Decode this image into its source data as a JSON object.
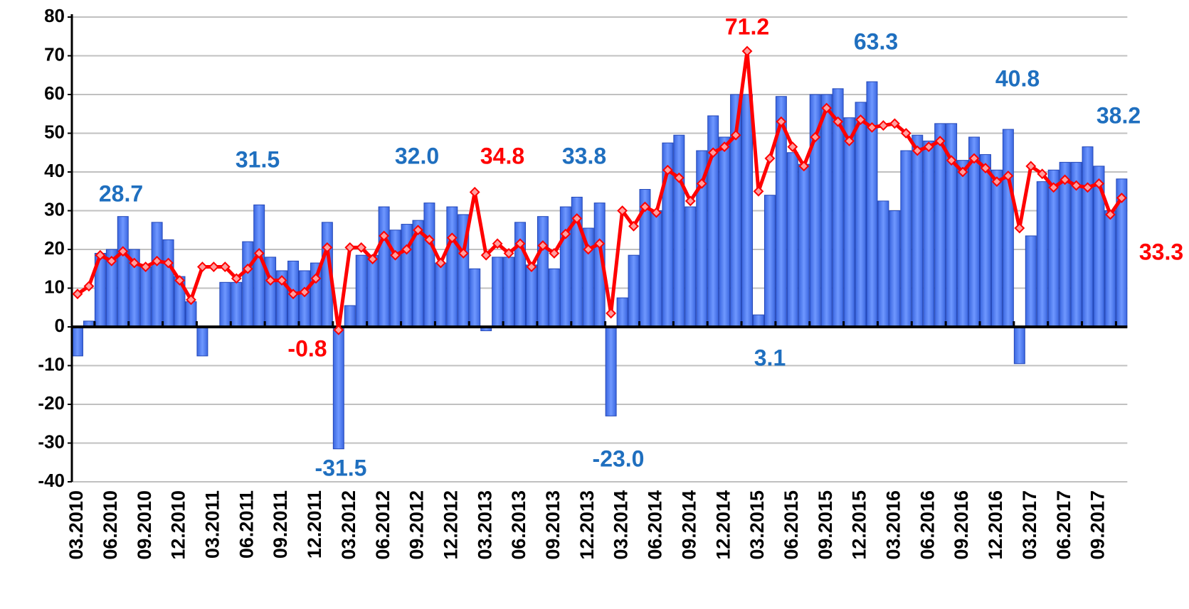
{
  "chart_data": {
    "type": "bar",
    "categories": [
      "03.2010",
      null,
      null,
      "06.2010",
      null,
      null,
      "09.2010",
      null,
      null,
      "12.2010",
      null,
      null,
      "03.2011",
      null,
      null,
      "06.2011",
      null,
      null,
      "09.2011",
      null,
      null,
      "12.2011",
      null,
      null,
      "03.2012",
      null,
      null,
      "06.2012",
      null,
      null,
      "09.2012",
      null,
      null,
      "12.2012",
      null,
      null,
      "03.2013",
      null,
      null,
      "06.2013",
      null,
      null,
      "09.2013",
      null,
      null,
      "12.2013",
      null,
      null,
      "03.2014",
      null,
      null,
      "06.2014",
      null,
      null,
      "09.2014",
      null,
      null,
      "12.2014",
      null,
      null,
      "03.2015",
      null,
      null,
      "06.2015",
      null,
      null,
      "09.2015",
      null,
      null,
      "12.2015",
      null,
      null,
      "03.2016",
      null,
      null,
      "06.2016",
      null,
      null,
      "09.2016",
      null,
      null,
      "12.2016",
      null,
      null,
      "03.2017",
      null,
      null,
      "06.2017",
      null,
      null,
      "09.2017",
      null,
      null
    ],
    "series": [
      {
        "type": "bar",
        "color": "#4f7ff0",
        "values": [
          -7.5,
          1.5,
          19,
          20,
          28.5,
          20,
          15.5,
          27,
          22.5,
          13,
          6.5,
          -7.5,
          0,
          11.5,
          11.5,
          22,
          31.5,
          18,
          14.5,
          17,
          14.5,
          16.5,
          27,
          -31.5,
          5.5,
          18.5,
          18.5,
          31,
          25,
          26.5,
          27.5,
          32,
          16.5,
          31,
          29,
          15,
          -1,
          18,
          18,
          27,
          16,
          28.5,
          15,
          31,
          33.5,
          25.5,
          32,
          -23,
          7.5,
          18.5,
          35.5,
          30,
          47.5,
          49.5,
          31,
          45.5,
          54.5,
          49,
          60,
          60,
          3.1,
          34,
          59.5,
          45,
          42,
          60,
          60,
          61.5,
          54,
          58,
          63.3,
          32.5,
          30,
          45.5,
          49.5,
          48,
          52.5,
          52.5,
          43,
          49,
          44.5,
          40.5,
          51,
          -9.5,
          23.5,
          37.5,
          40.5,
          42.5,
          42.5,
          46.5,
          41.5,
          30,
          38.2
        ]
      },
      {
        "type": "line",
        "color": "#ff0000",
        "values": [
          8.5,
          10.5,
          18.5,
          17,
          19.5,
          16.5,
          15.5,
          17,
          16.5,
          12,
          7,
          15.5,
          15.5,
          15.5,
          12.5,
          15,
          19,
          12,
          12,
          8.5,
          9,
          12.5,
          20.5,
          -0.8,
          20.5,
          20.5,
          17.5,
          23.5,
          18.5,
          20,
          25,
          22.5,
          16.5,
          23,
          19,
          34.8,
          18.5,
          21.5,
          19,
          21.5,
          15.5,
          21,
          19,
          24,
          28,
          20,
          21.5,
          3.5,
          30,
          26,
          31,
          29.5,
          40.5,
          38.5,
          32.5,
          37,
          45,
          46.5,
          49.5,
          71.2,
          35,
          43.5,
          53,
          46.5,
          41.5,
          49,
          56.5,
          53,
          48,
          53.5,
          51.5,
          52,
          52.5,
          50,
          45.5,
          46.5,
          48,
          43,
          40,
          43.5,
          41,
          37.5,
          39,
          25.5,
          41.5,
          39.5,
          36,
          38,
          36.5,
          36,
          37,
          29,
          33.3
        ]
      }
    ],
    "annotations": [
      {
        "text": "28.7",
        "color": "#1f6fbf"
      },
      {
        "text": "31.5",
        "color": "#1f6fbf"
      },
      {
        "text": "32.0",
        "color": "#1f6fbf"
      },
      {
        "text": "34.8",
        "color": "#ff0000"
      },
      {
        "text": "33.8",
        "color": "#1f6fbf"
      },
      {
        "text": "71.2",
        "color": "#ff0000"
      },
      {
        "text": "63.3",
        "color": "#1f6fbf"
      },
      {
        "text": "40.8",
        "color": "#1f6fbf"
      },
      {
        "text": "38.2",
        "color": "#1f6fbf"
      },
      {
        "text": "33.3",
        "color": "#ff0000"
      },
      {
        "text": "-0.8",
        "color": "#ff0000"
      },
      {
        "text": "-31.5",
        "color": "#1f6fbf"
      },
      {
        "text": "-23.0",
        "color": "#1f6fbf"
      },
      {
        "text": "3.1",
        "color": "#1f6fbf"
      }
    ],
    "ylim": [
      -40,
      80
    ],
    "yticks": [
      -40,
      -30,
      -20,
      -10,
      0,
      10,
      20,
      30,
      40,
      50,
      60,
      70,
      80
    ],
    "grid": true
  }
}
